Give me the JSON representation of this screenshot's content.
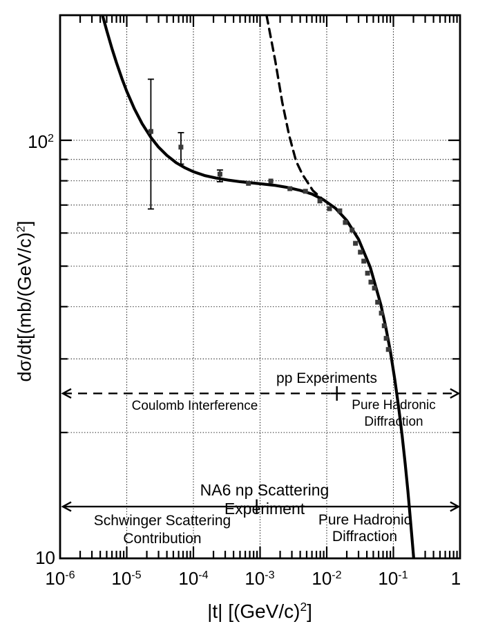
{
  "figure": {
    "background": "#ffffff",
    "colors": {
      "curve": "#000000",
      "marker": "#3a3a3a",
      "grid": "#111111",
      "text": "#000000"
    },
    "axes": {
      "x": {
        "label_main": "|t| [(GeV/c)",
        "label_sup": "2",
        "label_close": "]",
        "scale": "log",
        "min": 1e-06,
        "max": 1,
        "tick_labels": [
          {
            "base": "10",
            "sup": "-6",
            "value": 1e-06
          },
          {
            "base": "10",
            "sup": "-5",
            "value": 1e-05
          },
          {
            "base": "10",
            "sup": "-4",
            "value": 0.0001
          },
          {
            "base": "10",
            "sup": "-3",
            "value": 0.001
          },
          {
            "base": "10",
            "sup": "-2",
            "value": 0.01
          },
          {
            "base": "10",
            "sup": "-1",
            "value": 0.1
          },
          {
            "base": "1",
            "sup": "",
            "value": 1
          }
        ],
        "minor_tick_decades": [
          -6,
          -5,
          -4,
          -3,
          -2,
          -1
        ],
        "grid_decades": [
          -5,
          -4,
          -3,
          -2,
          -1
        ]
      },
      "y": {
        "label_main": "dσ/dt[(mb/(GeV/c)",
        "label_sup": "2",
        "label_close": "]",
        "scale": "log",
        "min": 10,
        "max": 199,
        "tick_labels": [
          {
            "base": "10",
            "sup": "2",
            "value": 100
          },
          {
            "base": "10",
            "sup": "",
            "value": 10
          }
        ],
        "grid_values": [
          20,
          30,
          40,
          50,
          60,
          70,
          80,
          90,
          100
        ],
        "major_tick_values": [
          100
        ]
      }
    },
    "annotations": {
      "pp_experiments": "pp Experiments",
      "coulomb_interference": "Coulomb Interference",
      "pure_hadronic_upper_line1": "Pure Hadronic",
      "pure_hadronic_upper_line2": "Diffraction",
      "na6": "NA6 np Scattering Experiment",
      "schwinger_line1": "Schwinger Scattering",
      "schwinger_line2": "Contribution",
      "pure_hadronic_lower": "Pure Hadronic Diffraction"
    },
    "arrows": [
      {
        "name": "pp-experiments-range-arrow",
        "style": "dashed",
        "y_value": 24.8,
        "t_from": 1.1e-06,
        "t_to": 0.95,
        "heads": "both",
        "divider_t": 0.0142,
        "divider_style": "plus"
      },
      {
        "name": "na6-range-arrow",
        "style": "solid",
        "y_value": 13.3,
        "t_from": 1.1e-06,
        "t_to": 0.95,
        "heads": "both",
        "divider_t": 0.00089,
        "divider_style": "tick"
      }
    ]
  },
  "chart_data": {
    "type": "line",
    "title": "",
    "xlabel": "|t| [(GeV/c)^2]",
    "ylabel": "dσ/dt[(mb/(GeV/c)^2]",
    "xscale": "log",
    "yscale": "log",
    "xlim": [
      1e-06,
      1
    ],
    "ylim": [
      10,
      199
    ],
    "grid": true,
    "series": [
      {
        "name": "schwinger-coulomb-plus-hadronic-model-curve",
        "style": "solid",
        "points": [
          [
            4.15e-06,
            204
          ],
          [
            4.3e-06,
            199.9
          ],
          [
            5e-06,
            183.0
          ],
          [
            6e-06,
            165.7
          ],
          [
            7e-06,
            153.3
          ],
          [
            8.5e-06,
            140.2
          ],
          [
            1e-05,
            131.0
          ],
          [
            1.3e-05,
            119.0
          ],
          [
            1.7e-05,
            109.6
          ],
          [
            2.3e-05,
            101.6
          ],
          [
            3e-05,
            96.3
          ],
          [
            4e-05,
            92.0
          ],
          [
            5.5e-05,
            88.4
          ],
          [
            7.5e-05,
            85.9
          ],
          [
            0.0001,
            84.1
          ],
          [
            0.00015,
            82.3
          ],
          [
            0.00022,
            81.2
          ],
          [
            0.00033,
            80.3
          ],
          [
            0.0005,
            79.6
          ],
          [
            0.00075,
            79.1
          ],
          [
            0.0011,
            78.6
          ],
          [
            0.0017,
            78.0
          ],
          [
            0.0026,
            77.1
          ],
          [
            0.004,
            75.9
          ],
          [
            0.006,
            74.4
          ],
          [
            0.009,
            72.0
          ],
          [
            0.0135,
            68.8
          ],
          [
            0.02,
            64.3
          ],
          [
            0.03,
            58.0
          ],
          [
            0.045,
            49.7
          ],
          [
            0.065,
            40.4
          ],
          [
            0.077,
            35.7
          ],
          [
            0.09,
            31.3
          ],
          [
            0.105,
            26.8
          ],
          [
            0.12,
            23.0
          ],
          [
            0.135,
            19.7
          ],
          [
            0.15,
            16.9
          ],
          [
            0.165,
            14.5
          ],
          [
            0.18,
            12.4
          ],
          [
            0.19,
            11.2
          ],
          [
            0.205,
            9.7
          ]
        ]
      },
      {
        "name": "coulomb-extrapolation-curve",
        "style": "dashed",
        "points": [
          [
            0.00125,
            199.0
          ],
          [
            0.00169,
            154.9
          ],
          [
            0.00215,
            123.3
          ],
          [
            0.00273,
            102.7
          ],
          [
            0.00347,
            89.2
          ],
          [
            0.0043,
            83.0
          ],
          [
            0.0062,
            75.8
          ],
          [
            0.0086,
            72.4
          ]
        ]
      }
    ],
    "scatter": {
      "name": "np-elastic-data-points",
      "marker": "square",
      "points": [
        {
          "t": 2.3e-05,
          "v": 105.0,
          "v_lo": 68.5,
          "v_hi": 140.0
        },
        {
          "t": 6.5e-05,
          "v": 96.3,
          "v_lo": 87.7,
          "v_hi": 104.3
        },
        {
          "t": 0.00025,
          "v": 83.0,
          "v_lo": 79.6,
          "v_hi": 84.9
        },
        {
          "t": 0.00067,
          "v": 78.9
        },
        {
          "t": 0.00145,
          "v": 79.9
        },
        {
          "t": 0.0028,
          "v": 76.6
        },
        {
          "t": 0.0048,
          "v": 75.5
        },
        {
          "t": 0.0079,
          "v": 71.6
        },
        {
          "t": 0.011,
          "v": 68.6
        },
        {
          "t": 0.0157,
          "v": 67.8
        },
        {
          "t": 0.019,
          "v": 63.6
        },
        {
          "t": 0.024,
          "v": 61.0
        },
        {
          "t": 0.027,
          "v": 56.7
        },
        {
          "t": 0.032,
          "v": 54.0
        },
        {
          "t": 0.036,
          "v": 51.4
        },
        {
          "t": 0.041,
          "v": 48.1
        },
        {
          "t": 0.046,
          "v": 45.8
        },
        {
          "t": 0.052,
          "v": 44.3
        },
        {
          "t": 0.058,
          "v": 41.0
        },
        {
          "t": 0.066,
          "v": 38.6
        },
        {
          "t": 0.073,
          "v": 36.0
        },
        {
          "t": 0.078,
          "v": 33.6
        },
        {
          "t": 0.084,
          "v": 31.6
        }
      ]
    }
  }
}
